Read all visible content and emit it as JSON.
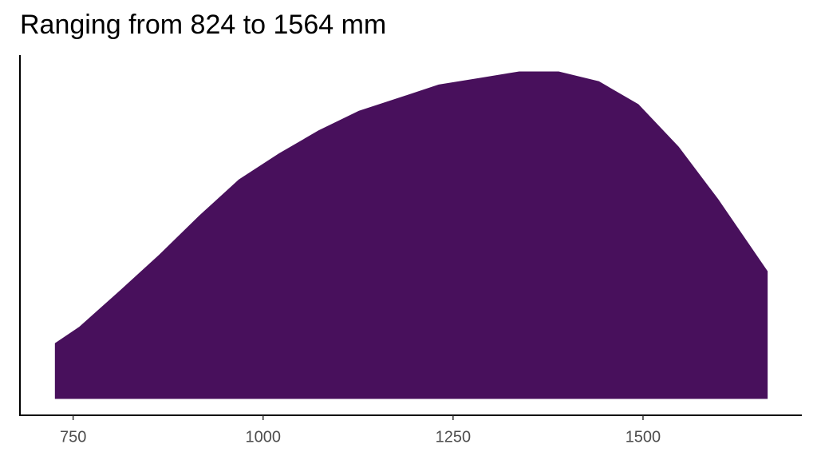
{
  "chart_data": {
    "type": "area",
    "title": "Ranging from 824 to 1564 mm",
    "x": [
      726,
      758,
      811,
      863,
      916,
      968,
      1021,
      1073,
      1126,
      1179,
      1231,
      1284,
      1337,
      1389,
      1442,
      1494,
      1547,
      1599,
      1664
    ],
    "values": [
      0.17,
      0.22,
      0.33,
      0.44,
      0.56,
      0.67,
      0.75,
      0.82,
      0.88,
      0.92,
      0.96,
      0.98,
      1.0,
      1.0,
      0.97,
      0.9,
      0.77,
      0.61,
      0.39
    ],
    "color": "#48105c",
    "xlim": [
      680,
      1709
    ],
    "xticks": [
      750,
      1000,
      1250,
      1500
    ],
    "ylim": [
      -0.05,
      1.05
    ]
  }
}
